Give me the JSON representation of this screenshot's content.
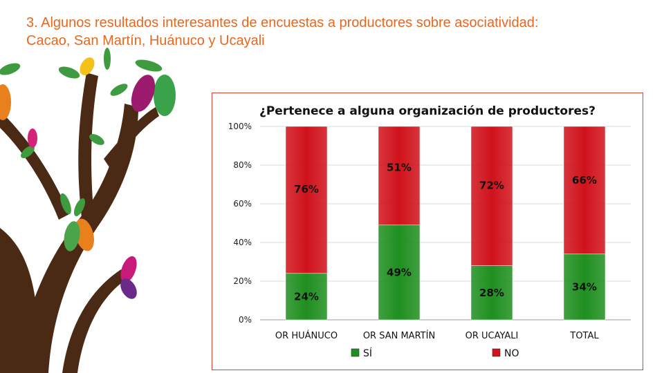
{
  "slide": {
    "title": "3. Algunos resultados interesantes de encuestas a productores sobre asociatividad: Cacao, San Martín, Huánuco y Ucayali"
  },
  "chart_data": {
    "type": "bar",
    "stacked": true,
    "title": "¿Pertenece a alguna organización de productores?",
    "categories": [
      "OR HUÁNUCO",
      "OR SAN MARTÍN",
      "OR UCAYALI",
      "TOTAL"
    ],
    "series": [
      {
        "name": "SÍ",
        "values": [
          24,
          49,
          28,
          34
        ],
        "labels": [
          "24%",
          "49%",
          "28%",
          "34%"
        ],
        "color": "#1f8f1f"
      },
      {
        "name": "NO",
        "values": [
          76,
          51,
          72,
          66
        ],
        "labels": [
          "76%",
          "51%",
          "72%",
          "66%"
        ],
        "color": "#d0121b"
      }
    ],
    "y_ticks": [
      "0%",
      "20%",
      "40%",
      "60%",
      "80%",
      "100%"
    ],
    "ylim": [
      0,
      100
    ],
    "grid": true,
    "legend": "bottom"
  },
  "colors": {
    "title": "#e8671e",
    "frame": "#d9432b",
    "yes": "#1f8f1f",
    "no": "#d0121b"
  }
}
